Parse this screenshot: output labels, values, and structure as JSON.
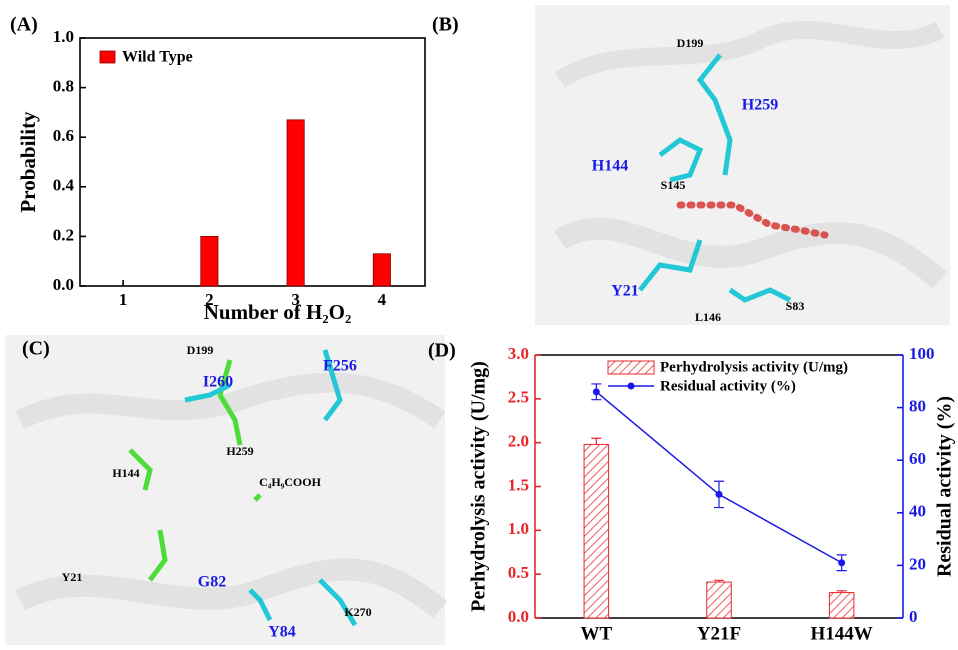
{
  "chart_data": [
    {
      "type": "bar",
      "label": "(A)",
      "xlabel": "Number of H₂O₂",
      "ylabel": "Probability",
      "x": [
        1,
        2,
        3,
        4
      ],
      "values": [
        0,
        0.2,
        0.67,
        0.13
      ],
      "series_name": "Wild Type",
      "color": "#ff0000",
      "xlim": [
        0.5,
        4.5
      ],
      "xticks": [
        1,
        2,
        3,
        4
      ],
      "ylim": [
        0,
        1
      ],
      "yticks": [
        {
          "value": 0,
          "label": "0.0"
        },
        {
          "value": 0.2,
          "label": "0.2"
        },
        {
          "value": 0.4,
          "label": "0.4"
        },
        {
          "value": 0.6,
          "label": "0.6"
        },
        {
          "value": 0.8,
          "label": "0.8"
        },
        {
          "value": 1,
          "label": "1.0"
        }
      ],
      "legend": "top-left"
    },
    {
      "type": "bar-line",
      "label": "(D)",
      "ylabel": "Perhydrolysis activity (U/mg)",
      "y2label": "Residual activity (%)",
      "categories": [
        "WT",
        "Y21F",
        "H144W"
      ],
      "series": [
        {
          "name": "Perhydrolysis activity (U/mg)",
          "color": "#e8262b",
          "type": "bar",
          "values": [
            1.98,
            0.41,
            0.29
          ],
          "errors": [
            0.07,
            0.02,
            0.02
          ]
        },
        {
          "name": "Residual activity (%)",
          "color": "#1a1ae6",
          "type": "line",
          "axis": "y2",
          "values": [
            86,
            47,
            21
          ],
          "errors": [
            3,
            5,
            3
          ]
        }
      ],
      "ylim": [
        0,
        3
      ],
      "yticks": [
        {
          "value": 0,
          "label": "0.0"
        },
        {
          "value": 0.5,
          "label": "0.5"
        },
        {
          "value": 1,
          "label": "1.0"
        },
        {
          "value": 1.5,
          "label": "1.5"
        },
        {
          "value": 2,
          "label": "2.0"
        },
        {
          "value": 2.5,
          "label": "2.5"
        },
        {
          "value": 3,
          "label": "3.0"
        }
      ],
      "y2lim": [
        0,
        100
      ],
      "y2ticks": [
        0,
        20,
        40,
        60,
        80,
        100
      ],
      "legend": "top-right"
    }
  ],
  "structures": [
    {
      "label": "(B)",
      "residues": [
        {
          "text": "D199",
          "color": "#000000"
        },
        {
          "text": "H259",
          "color": "#1a1ae6"
        },
        {
          "text": "H144",
          "color": "#1a1ae6"
        },
        {
          "text": "S145",
          "color": "#000000"
        },
        {
          "text": "Y21",
          "color": "#1a1ae6"
        },
        {
          "text": "L146",
          "color": "#000000"
        },
        {
          "text": "S83",
          "color": "#000000"
        }
      ]
    },
    {
      "label": "(C)",
      "residues": [
        {
          "text": "D199",
          "color": "#000000"
        },
        {
          "text": "I260",
          "color": "#1a1ae6"
        },
        {
          "text": "F256",
          "color": "#1a1ae6"
        },
        {
          "text": "H259",
          "color": "#000000"
        },
        {
          "text": "H144",
          "color": "#000000"
        },
        {
          "text": "C₄H₉COOH",
          "color": "#000000"
        },
        {
          "text": "Y21",
          "color": "#000000"
        },
        {
          "text": "G82",
          "color": "#1a1ae6"
        },
        {
          "text": "Y84",
          "color": "#1a1ae6"
        },
        {
          "text": "K270",
          "color": "#000000"
        }
      ]
    }
  ]
}
